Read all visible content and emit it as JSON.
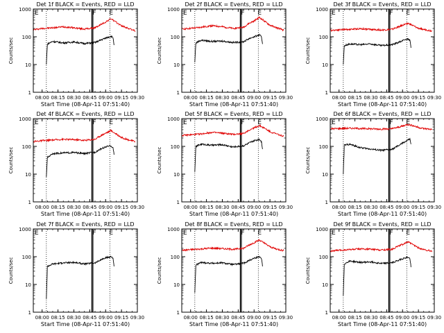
{
  "figure": {
    "colors": {
      "events": "#000000",
      "lld": "#e00000",
      "frame": "#000000",
      "background": "#ffffff"
    },
    "shared_x_ticks": [
      "08:00",
      "08:15",
      "08:30",
      "08:45",
      "09:00",
      "09:15",
      "09:30"
    ],
    "shared_y_ticks": [
      "1",
      "10",
      "100",
      "1000"
    ],
    "marker_letters": [
      "E",
      "F",
      "E"
    ]
  },
  "chart_data": [
    {
      "type": "line",
      "title": "Det 1f BLACK = Events, RED = LLD",
      "xlabel": "Start Time (08-Apr-11 07:51:40)",
      "ylabel": "Counts/sec",
      "yscale": "log",
      "ylim": [
        1,
        1000
      ],
      "xlim": [
        "07:51:40",
        "09:30:00"
      ],
      "series": [
        {
          "color": "#e00000",
          "x": [
            "07:52",
            "08:00",
            "08:10",
            "08:20",
            "08:30",
            "08:40",
            "08:50",
            "08:55",
            "09:00",
            "09:05",
            "09:10",
            "09:15",
            "09:20",
            "09:25",
            "09:28"
          ],
          "y": [
            180,
            200,
            210,
            230,
            210,
            190,
            210,
            270,
            340,
            450,
            330,
            250,
            210,
            180,
            160
          ]
        },
        {
          "color": "#000000",
          "x": [
            "08:04",
            "08:05",
            "08:10",
            "08:20",
            "08:30",
            "08:40",
            "08:50",
            "08:55",
            "09:00",
            "09:05",
            "09:07",
            "09:08"
          ],
          "y": [
            10,
            55,
            68,
            60,
            65,
            57,
            62,
            75,
            90,
            105,
            95,
            50
          ]
        }
      ]
    },
    {
      "type": "line",
      "title": "Det 2f BLACK = Events, RED = LLD",
      "xlabel": "Start Time (08-Apr-11 07:51:40)",
      "ylabel": "Counts/sec",
      "yscale": "log",
      "ylim": [
        1,
        1000
      ],
      "xlim": [
        "07:51:40",
        "09:30:00"
      ],
      "series": [
        {
          "color": "#e00000",
          "x": [
            "07:52",
            "08:00",
            "08:10",
            "08:20",
            "08:30",
            "08:40",
            "08:50",
            "08:55",
            "09:00",
            "09:05",
            "09:10",
            "09:15",
            "09:20",
            "09:25",
            "09:28"
          ],
          "y": [
            190,
            200,
            220,
            250,
            230,
            200,
            220,
            300,
            370,
            500,
            360,
            260,
            220,
            190,
            170
          ]
        },
        {
          "color": "#000000",
          "x": [
            "08:04",
            "08:05",
            "08:10",
            "08:20",
            "08:30",
            "08:40",
            "08:50",
            "08:55",
            "09:00",
            "09:05",
            "09:07",
            "09:08"
          ],
          "y": [
            12,
            60,
            75,
            68,
            70,
            62,
            66,
            85,
            100,
            115,
            100,
            55
          ]
        }
      ]
    },
    {
      "type": "line",
      "title": "Det 3f BLACK = Events, RED = LLD",
      "xlabel": "Start Time (08-Apr-11 07:51:40)",
      "ylabel": "Counts/sec",
      "yscale": "log",
      "ylim": [
        1,
        1000
      ],
      "xlim": [
        "07:51:40",
        "09:30:00"
      ],
      "series": [
        {
          "color": "#e00000",
          "x": [
            "07:52",
            "08:00",
            "08:10",
            "08:20",
            "08:30",
            "08:40",
            "08:50",
            "08:55",
            "09:00",
            "09:05",
            "09:10",
            "09:15",
            "09:20",
            "09:25",
            "09:28"
          ],
          "y": [
            170,
            180,
            185,
            195,
            185,
            175,
            185,
            220,
            260,
            310,
            250,
            200,
            185,
            170,
            160
          ]
        },
        {
          "color": "#000000",
          "x": [
            "08:04",
            "08:05",
            "08:10",
            "08:20",
            "08:30",
            "08:40",
            "08:50",
            "08:55",
            "09:00",
            "09:05",
            "09:07",
            "09:08"
          ],
          "y": [
            10,
            48,
            55,
            52,
            55,
            48,
            52,
            60,
            72,
            85,
            75,
            40
          ]
        }
      ]
    },
    {
      "type": "line",
      "title": "Det 4f BLACK = Events, RED = LLD",
      "xlabel": "Start Time (08-Apr-11 07:51:40)",
      "ylabel": "Counts/sec",
      "yscale": "log",
      "ylim": [
        1,
        1000
      ],
      "xlim": [
        "07:51:40",
        "09:30:00"
      ],
      "series": [
        {
          "color": "#e00000",
          "x": [
            "07:52",
            "08:00",
            "08:10",
            "08:20",
            "08:30",
            "08:40",
            "08:50",
            "08:55",
            "09:00",
            "09:05",
            "09:10",
            "09:15",
            "09:20",
            "09:25",
            "09:28"
          ],
          "y": [
            150,
            160,
            170,
            180,
            175,
            165,
            180,
            240,
            300,
            370,
            280,
            210,
            180,
            160,
            150
          ]
        },
        {
          "color": "#000000",
          "x": [
            "08:04",
            "08:05",
            "08:10",
            "08:20",
            "08:30",
            "08:40",
            "08:50",
            "08:55",
            "09:00",
            "09:05",
            "09:07",
            "09:08"
          ],
          "y": [
            8,
            40,
            55,
            58,
            60,
            55,
            62,
            80,
            95,
            105,
            90,
            50
          ]
        }
      ]
    },
    {
      "type": "line",
      "title": "Det 5f BLACK = Events, RED = LLD",
      "xlabel": "Start Time (08-Apr-11 07:51:40)",
      "ylabel": "Counts/sec",
      "yscale": "log",
      "ylim": [
        1,
        1000
      ],
      "xlim": [
        "07:51:40",
        "09:30:00"
      ],
      "series": [
        {
          "color": "#e00000",
          "x": [
            "07:52",
            "08:00",
            "08:10",
            "08:20",
            "08:30",
            "08:40",
            "08:50",
            "08:55",
            "09:00",
            "09:05",
            "09:10",
            "09:15",
            "09:20",
            "09:25",
            "09:28"
          ],
          "y": [
            250,
            260,
            280,
            320,
            300,
            270,
            290,
            380,
            460,
            560,
            450,
            340,
            290,
            250,
            230
          ]
        },
        {
          "color": "#000000",
          "x": [
            "08:04",
            "08:05",
            "08:10",
            "08:20",
            "08:30",
            "08:40",
            "08:50",
            "08:55",
            "09:00",
            "09:05",
            "09:07",
            "09:08"
          ],
          "y": [
            12,
            100,
            120,
            110,
            115,
            95,
            105,
            130,
            160,
            180,
            150,
            80
          ]
        }
      ]
    },
    {
      "type": "line",
      "title": "Det 6f BLACK = Events, RED = LLD",
      "xlabel": "Start Time (08-Apr-11 07:51:40)",
      "ylabel": "Counts/sec",
      "yscale": "log",
      "ylim": [
        1,
        1000
      ],
      "xlim": [
        "07:51:40",
        "09:30:00"
      ],
      "series": [
        {
          "color": "#e00000",
          "x": [
            "07:52",
            "08:00",
            "08:10",
            "08:20",
            "08:30",
            "08:40",
            "08:50",
            "08:55",
            "09:00",
            "09:05",
            "09:10",
            "09:15",
            "09:20",
            "09:25",
            "09:28"
          ],
          "y": [
            430,
            440,
            450,
            440,
            430,
            420,
            430,
            480,
            540,
            620,
            560,
            480,
            440,
            420,
            410
          ]
        },
        {
          "color": "#000000",
          "x": [
            "08:04",
            "08:05",
            "08:10",
            "08:20",
            "08:30",
            "08:40",
            "08:50",
            "08:55",
            "09:00",
            "09:05",
            "09:07",
            "09:08"
          ],
          "y": [
            10,
            110,
            120,
            90,
            80,
            72,
            78,
            100,
            130,
            170,
            180,
            120
          ]
        }
      ]
    },
    {
      "type": "line",
      "title": "Det 7f BLACK = Events, RED = LLD",
      "xlabel": "Start Time (08-Apr-11 07:51:40)",
      "ylabel": "Counts/sec",
      "yscale": "log",
      "ylim": [
        1,
        1000
      ],
      "xlim": [
        "07:51:40",
        "09:30:00"
      ],
      "series": [
        {
          "color": "#000000",
          "x": [
            "08:04",
            "08:05",
            "08:10",
            "08:20",
            "08:30",
            "08:40",
            "08:50",
            "08:55",
            "09:00",
            "09:05",
            "09:07",
            "09:08"
          ],
          "y": [
            3,
            45,
            55,
            60,
            62,
            55,
            60,
            75,
            90,
            100,
            90,
            45
          ]
        }
      ]
    },
    {
      "type": "line",
      "title": "Det 8f BLACK = Events, RED = LLD",
      "xlabel": "Start Time (08-Apr-11 07:51:40)",
      "ylabel": "Counts/sec",
      "yscale": "log",
      "ylim": [
        1,
        1000
      ],
      "xlim": [
        "07:51:40",
        "09:30:00"
      ],
      "series": [
        {
          "color": "#e00000",
          "x": [
            "07:52",
            "08:00",
            "08:10",
            "08:20",
            "08:30",
            "08:40",
            "08:50",
            "08:55",
            "09:00",
            "09:05",
            "09:10",
            "09:15",
            "09:20",
            "09:25",
            "09:28"
          ],
          "y": [
            170,
            180,
            190,
            205,
            195,
            185,
            200,
            260,
            320,
            400,
            300,
            230,
            195,
            175,
            165
          ]
        },
        {
          "color": "#000000",
          "x": [
            "08:04",
            "08:05",
            "08:10",
            "08:20",
            "08:30",
            "08:40",
            "08:50",
            "08:55",
            "09:00",
            "09:05",
            "09:07",
            "09:08"
          ],
          "y": [
            5,
            50,
            62,
            58,
            60,
            52,
            58,
            72,
            88,
            100,
            88,
            45
          ]
        }
      ]
    },
    {
      "type": "line",
      "title": "Det 9f BLACK = Events, RED = LLD",
      "xlabel": "Start Time (08-Apr-11 07:51:40)",
      "ylabel": "Counts/sec",
      "yscale": "log",
      "ylim": [
        1,
        1000
      ],
      "xlim": [
        "07:51:40",
        "09:30:00"
      ],
      "series": [
        {
          "color": "#e00000",
          "x": [
            "07:52",
            "08:00",
            "08:10",
            "08:20",
            "08:30",
            "08:40",
            "08:50",
            "08:55",
            "09:00",
            "09:05",
            "09:10",
            "09:15",
            "09:20",
            "09:25",
            "09:28"
          ],
          "y": [
            160,
            170,
            180,
            190,
            185,
            175,
            185,
            230,
            280,
            340,
            270,
            210,
            180,
            165,
            155
          ]
        },
        {
          "color": "#000000",
          "x": [
            "08:04",
            "08:05",
            "08:10",
            "08:20",
            "08:30",
            "08:40",
            "08:50",
            "08:55",
            "09:00",
            "09:05",
            "09:07",
            "09:08"
          ],
          "y": [
            4,
            55,
            70,
            62,
            65,
            57,
            60,
            72,
            85,
            95,
            85,
            42
          ]
        }
      ]
    }
  ]
}
